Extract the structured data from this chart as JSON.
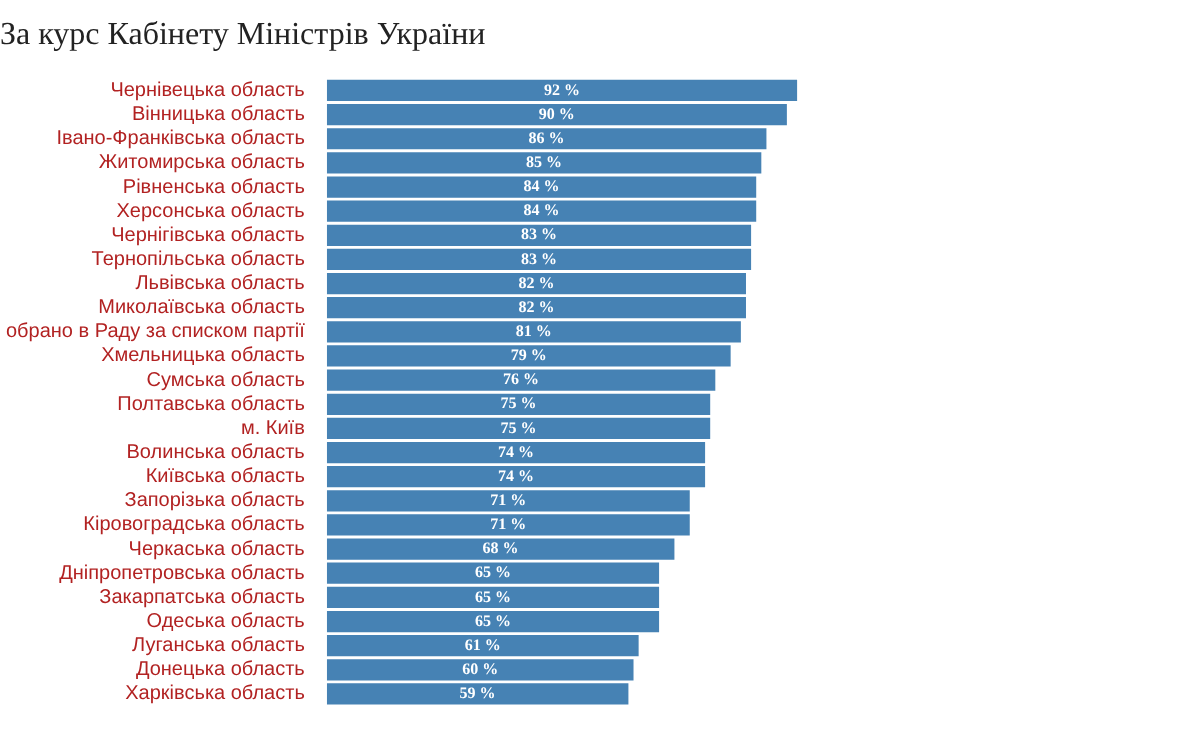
{
  "chart_data": {
    "type": "bar",
    "orientation": "horizontal",
    "title": "За курс Кабінету Міністрів України",
    "categories": [
      "Чернівецька область",
      "Вінницька область",
      "Івано-Франківська область",
      "Житомирська область",
      "Рівненська область",
      "Херсонська область",
      "Чернігівська область",
      "Тернопільська область",
      "Львівська область",
      "Миколаївська область",
      "обрано в Раду за списком партії",
      "Хмельницька область",
      "Сумська область",
      "Полтавська область",
      "м. Київ",
      "Волинська область",
      "Київська область",
      "Запорізька область",
      "Кіровоградська область",
      "Черкаська область",
      "Дніпропетровська область",
      "Закарпатська область",
      "Одеська область",
      "Луганська область",
      "Донецька область",
      "Харківська область"
    ],
    "values": [
      92,
      90,
      86,
      85,
      84,
      84,
      83,
      83,
      82,
      82,
      81,
      79,
      76,
      75,
      75,
      74,
      74,
      71,
      71,
      68,
      65,
      65,
      65,
      61,
      60,
      59
    ],
    "value_labels": [
      "92 %",
      "90 %",
      "86 %",
      "85 %",
      "84 %",
      "84 %",
      "83 %",
      "83 %",
      "82 %",
      "82 %",
      "81 %",
      "79 %",
      "76 %",
      "75 %",
      "75 %",
      "74 %",
      "74 %",
      "71 %",
      "71 %",
      "68 %",
      "65 %",
      "65 %",
      "65 %",
      "61 %",
      "60 %",
      "59 %"
    ],
    "color": "#4682b4",
    "tick_labels": "y",
    "legend": false
  }
}
